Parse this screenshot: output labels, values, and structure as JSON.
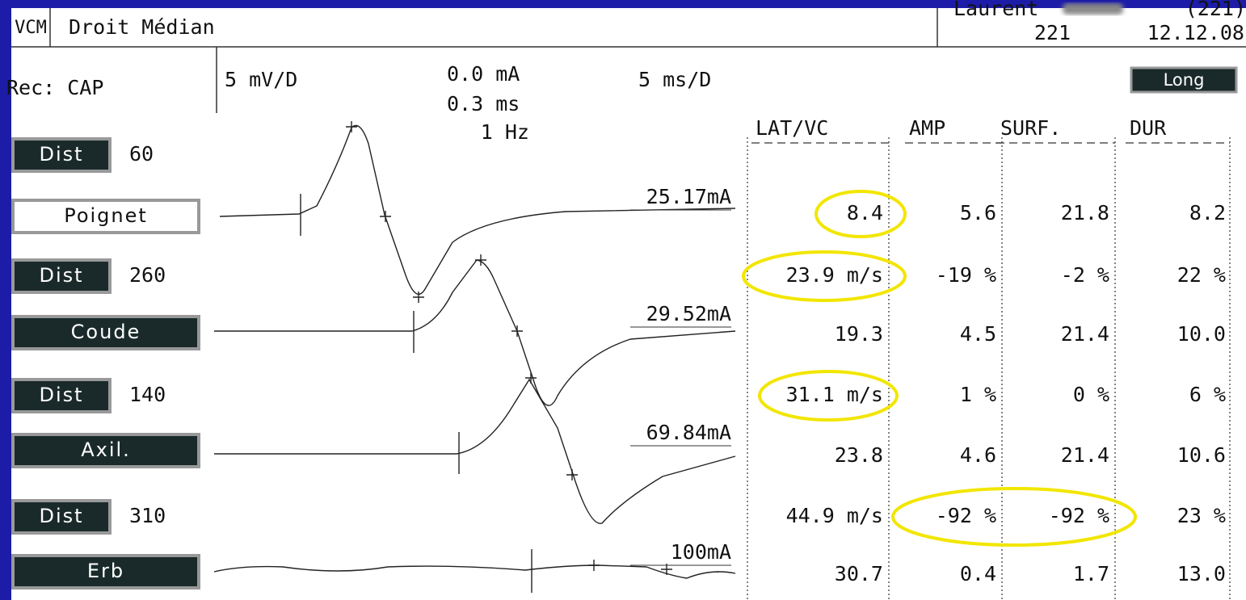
{
  "header": {
    "mode": "VCM",
    "nerve": "Droit Médian",
    "patient": "Laurent",
    "patient_id": "(221)",
    "number": "221",
    "date": "12.12.08"
  },
  "settings": {
    "recording": "Rec: CAP",
    "gain": "5 mV/D",
    "intensity": "0.0 mA",
    "duration": "0.3 ms",
    "frequency": "1 Hz",
    "sweep": "5 ms/D",
    "mode_button": "Long"
  },
  "left_panel": [
    {
      "button": "Dist",
      "value": 60
    },
    {
      "button": "Poignet"
    },
    {
      "button": "Dist",
      "value": 260
    },
    {
      "button": "Coude"
    },
    {
      "button": "Dist",
      "value": 140
    },
    {
      "button": "Axil."
    },
    {
      "button": "Dist",
      "value": 310
    },
    {
      "button": "Erb"
    }
  ],
  "traces": [
    "25.17mA",
    "29.52mA",
    "69.84mA",
    "100mA"
  ],
  "table": {
    "headers": [
      "LAT/VC",
      "AMP",
      "SURF.",
      "DUR"
    ],
    "rows": [
      [
        "8.4",
        "5.6",
        "21.8",
        "8.2"
      ],
      [
        "23.9 m/s",
        "-19 %",
        "-2 %",
        "22 %"
      ],
      [
        "19.3",
        "4.5",
        "21.4",
        "10.0"
      ],
      [
        "31.1 m/s",
        "1 %",
        "0 %",
        "6 %"
      ],
      [
        "23.8",
        "4.6",
        "21.4",
        "10.6"
      ],
      [
        "44.9 m/s",
        "-92 %",
        "-92 %",
        "23 %"
      ],
      [
        "30.7",
        "0.4",
        "1.7",
        "13.0"
      ]
    ]
  }
}
